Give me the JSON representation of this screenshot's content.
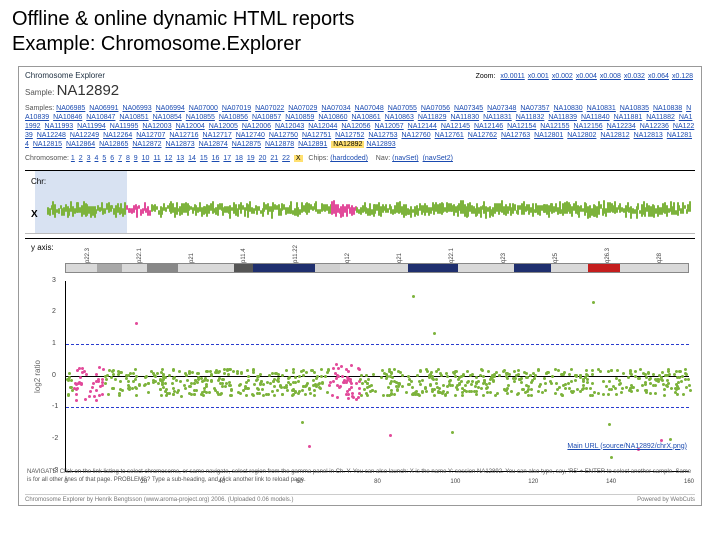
{
  "slide": {
    "title": "Offline & online dynamic HTML reports",
    "subtitle": "Example: Chromosome.Explorer"
  },
  "app": {
    "title": "Chromosome Explorer",
    "sample_label": "Sample:",
    "sample_name": "NA12892",
    "zoom_label": "Zoom:",
    "zoom_links": [
      "x0.0011",
      "x0.001",
      "x0.002",
      "x0.004",
      "x0.008",
      "x0.032",
      "x0.064",
      "x0.128"
    ]
  },
  "samples": {
    "label": "Samples:",
    "items": [
      "NA06985",
      "NA06991",
      "NA06993",
      "NA06994",
      "NA07000",
      "NA07019",
      "NA07022",
      "NA07029",
      "NA07034",
      "NA07048",
      "NA07055",
      "NA07056",
      "NA07345",
      "NA07348",
      "NA07357",
      "NA10830",
      "NA10831",
      "NA10835",
      "NA10838",
      "NA10839",
      "NA10846",
      "NA10847",
      "NA10851",
      "NA10854",
      "NA10855",
      "NA10856",
      "NA10857",
      "NA10859",
      "NA10860",
      "NA10861",
      "NA10863",
      "NA11829",
      "NA11830",
      "NA11831",
      "NA11832",
      "NA11839",
      "NA11840",
      "NA11881",
      "NA11882",
      "NA11992",
      "NA11993",
      "NA11994",
      "NA11995",
      "NA12003",
      "NA12004",
      "NA12005",
      "NA12006",
      "NA12043",
      "NA12044",
      "NA12056",
      "NA12057",
      "NA12144",
      "NA12145",
      "NA12146",
      "NA12154",
      "NA12155",
      "NA12156",
      "NA12234",
      "NA12236",
      "NA12239",
      "NA12248",
      "NA12249",
      "NA12264",
      "NA12707",
      "NA12716",
      "NA12717",
      "NA12740",
      "NA12750",
      "NA12751",
      "NA12752",
      "NA12753",
      "NA12760",
      "NA12761",
      "NA12762",
      "NA12763",
      "NA12801",
      "NA12802",
      "NA12812",
      "NA12813",
      "NA12814",
      "NA12815",
      "NA12864",
      "NA12865",
      "NA12872",
      "NA12873",
      "NA12874",
      "NA12875",
      "NA12878",
      "NA12891"
    ],
    "selected": "NA12892",
    "after": [
      "NA12893"
    ]
  },
  "chromosome": {
    "label": "Chromosome:",
    "items": [
      "1",
      "2",
      "3",
      "4",
      "5",
      "6",
      "7",
      "8",
      "9",
      "10",
      "11",
      "12",
      "13",
      "14",
      "15",
      "16",
      "17",
      "18",
      "19",
      "20",
      "21",
      "22"
    ],
    "selected": "X"
  },
  "chipset": {
    "label": "Chips:",
    "items": [
      "(hardcoded)"
    ]
  },
  "navset": {
    "label": "Nav:",
    "items": [
      "(navSet)",
      "(navSet2)"
    ]
  },
  "nav_panel": {
    "axis": "Chr:",
    "chrlabel": "X",
    "highlight_color": "#b8cbe8",
    "spark_count": 360,
    "spark_color_green": "#7db33c",
    "spark_color_pink": "#e24a9a",
    "pink_regions": [
      [
        0.12,
        0.16
      ],
      [
        0.44,
        0.48
      ]
    ]
  },
  "main_panel": {
    "axis": "y axis:",
    "ylabel": "log2 ratio",
    "ylim": [
      -3,
      3
    ],
    "yticks": [
      -3,
      -2,
      -1,
      0,
      1,
      2,
      3
    ],
    "hlines": [
      -1,
      1
    ],
    "centerline": 0,
    "xticks": [
      0,
      20,
      40,
      60,
      80,
      100,
      120,
      140,
      160
    ],
    "ideogram_bands": [
      {
        "start": 0.0,
        "end": 0.05,
        "color": "#d9d9d9"
      },
      {
        "start": 0.05,
        "end": 0.09,
        "color": "#a8a8a8"
      },
      {
        "start": 0.09,
        "end": 0.13,
        "color": "#d9d9d9"
      },
      {
        "start": 0.13,
        "end": 0.18,
        "color": "#888"
      },
      {
        "start": 0.18,
        "end": 0.27,
        "color": "#d9d9d9"
      },
      {
        "start": 0.27,
        "end": 0.3,
        "color": "#555"
      },
      {
        "start": 0.3,
        "end": 0.4,
        "color": "#1f2f6e"
      },
      {
        "start": 0.4,
        "end": 0.44,
        "color": "#d0d0d0"
      },
      {
        "start": 0.44,
        "end": 0.55,
        "color": "#d9d9d9"
      },
      {
        "start": 0.55,
        "end": 0.63,
        "color": "#1f2f6e"
      },
      {
        "start": 0.63,
        "end": 0.72,
        "color": "#d9d9d9"
      },
      {
        "start": 0.72,
        "end": 0.78,
        "color": "#1f2f6e"
      },
      {
        "start": 0.78,
        "end": 0.84,
        "color": "#d9d9d9"
      },
      {
        "start": 0.84,
        "end": 0.89,
        "color": "#c41e1e"
      },
      {
        "start": 0.89,
        "end": 1.0,
        "color": "#d9d9d9"
      }
    ],
    "ideogram_ticks": [
      "Xp22.3",
      "Xp22.1",
      "Xp21",
      "Xp11.4",
      "Xp11.22",
      "Xq12",
      "Xq21",
      "Xq22.1",
      "Xq23",
      "Xq25",
      "Xq26.3",
      "Xq28"
    ],
    "scatter": {
      "n": 850,
      "green": "#7db33c",
      "pink": "#e24a9a",
      "pink_clusters": [
        [
          0.01,
          0.06,
          -0.8,
          0.3
        ],
        [
          0.42,
          0.47,
          -0.7,
          0.4
        ]
      ],
      "green_band": [
        -0.6,
        0.25
      ]
    },
    "url": "Main URL (source/NA12892/chrX.png)"
  },
  "footer": {
    "help": "NAVIGATE: Click on the link listing to select chromosome, or same navigate, select region from the gamma panel in Ch. Y. You can also launch: X is the name Y: session NA12892.\nYou can also type, say, 'R5' + ENTER to select another sample. Same is for all other lines of that page. PROBLEMS? Type a sub-heading, and click another link to reload page.",
    "left": "Chromosome Explorer by Henrik Bengtsson (www.aroma-project.org) 2006. (Uploaded 0.06 models.)",
    "right": "Powered by WebCuts"
  },
  "colors": {
    "link": "#1a4ab0",
    "highlight": "#ffe070",
    "dashline": "#2a3cd0"
  }
}
